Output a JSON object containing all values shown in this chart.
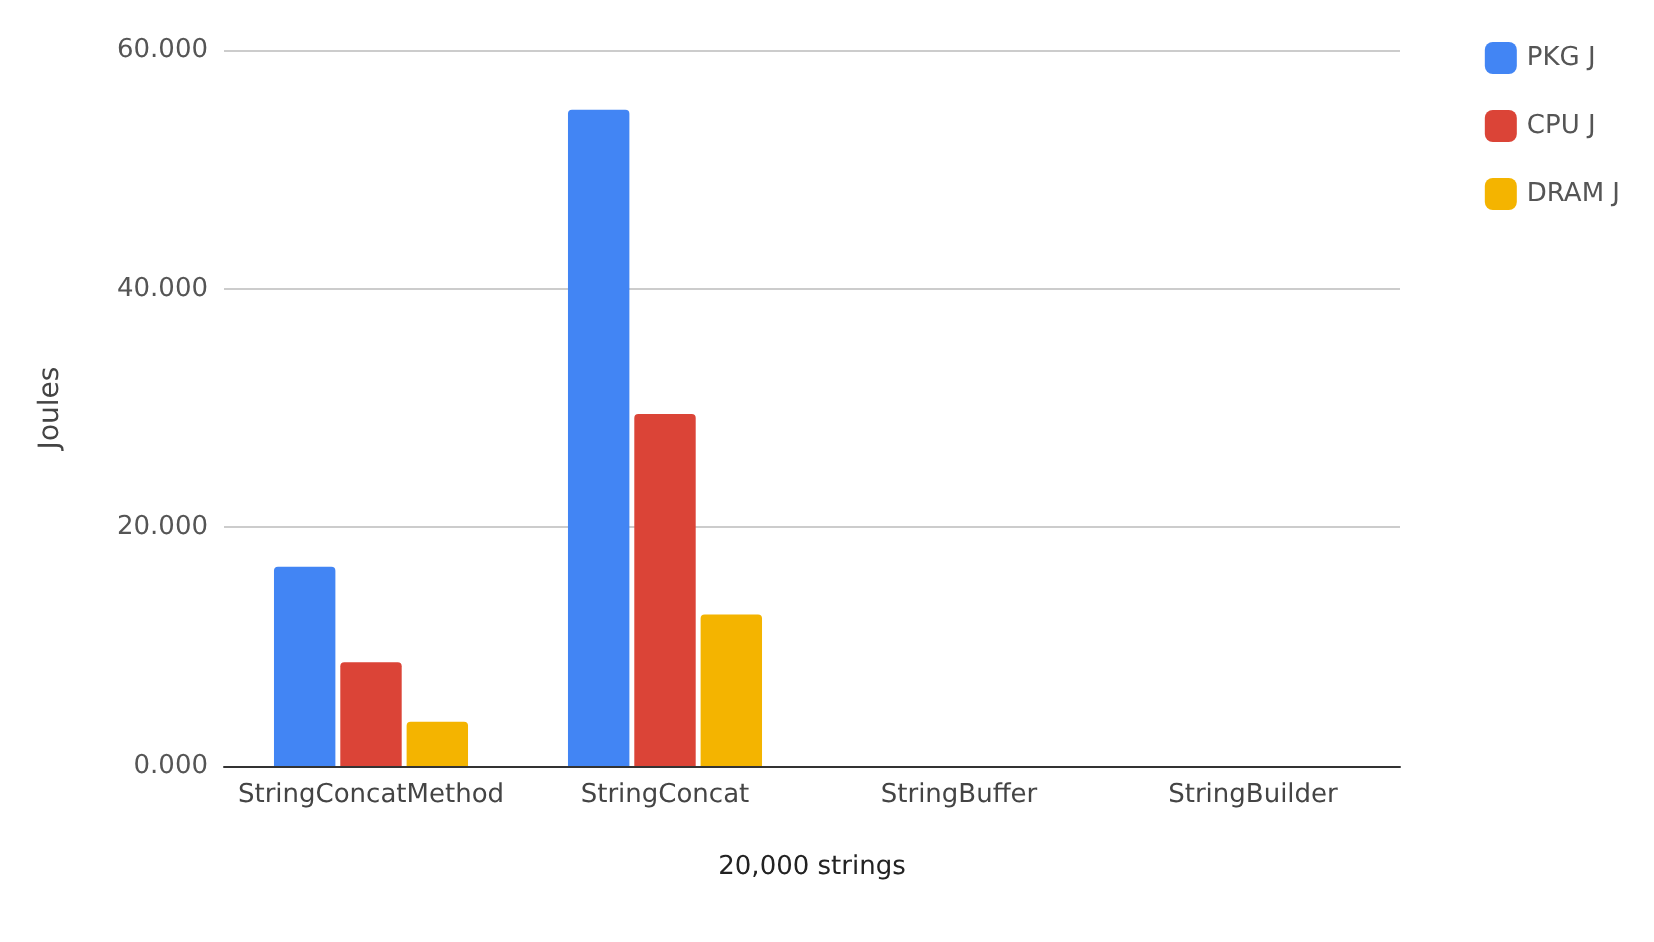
{
  "chart_data": {
    "type": "bar",
    "xlabel": "20,000 strings",
    "ylabel": "Joules",
    "categories": [
      "StringConcatMethod",
      "StringConcat",
      "StringBuffer",
      "StringBuilder"
    ],
    "series": [
      {
        "name": "PKG J",
        "color": "#4285f4",
        "values": [
          16.7,
          55.0,
          0,
          0
        ]
      },
      {
        "name": "CPU J",
        "color": "#db4437",
        "values": [
          8.7,
          29.5,
          0,
          0
        ]
      },
      {
        "name": "DRAM J",
        "color": "#f4b400",
        "values": [
          3.7,
          12.7,
          0,
          0
        ]
      }
    ],
    "ylim": [
      0,
      60
    ],
    "yticks": [
      {
        "value": 0,
        "label": "0.000"
      },
      {
        "value": 20,
        "label": "20.000"
      },
      {
        "value": 40,
        "label": "40.000"
      },
      {
        "value": 60,
        "label": "60.000"
      }
    ],
    "grid": "y",
    "legend": "top right"
  }
}
